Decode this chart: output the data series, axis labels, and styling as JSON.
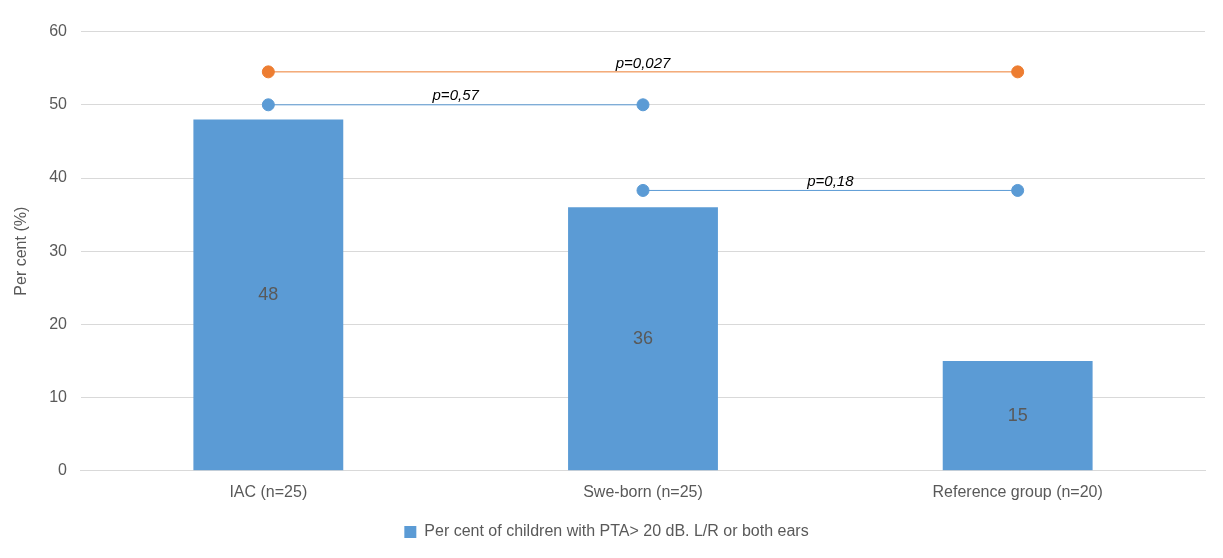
{
  "chart_data": {
    "type": "bar",
    "categories": [
      "IAC (n=25)",
      "Swe-born (n=25)",
      "Reference group (n=20)"
    ],
    "ylabel": "Per cent (%)",
    "ylim": [
      0,
      60
    ],
    "yticks": [
      0,
      10,
      20,
      30,
      40,
      50,
      60
    ],
    "grid": "y",
    "legend": "bottom",
    "series": [
      {
        "name": "Per cent of children with PTA> 20 dB. L/R or both ears",
        "color": "#5b9bd5",
        "values": [
          48,
          36,
          15
        ],
        "value_labels": [
          "48",
          "36",
          "15"
        ]
      },
      {
        "type": "line",
        "name": "p=0,027",
        "color": "#ed7d31",
        "marker": "circle",
        "values": [
          54.5,
          null,
          54.5
        ]
      },
      {
        "type": "line",
        "name": "p=0,57",
        "color": "#5b9bd5",
        "marker": "circle",
        "values": [
          50,
          50,
          null
        ]
      },
      {
        "type": "line",
        "name": "p=0,18",
        "color": "#5b9bd5",
        "marker": "circle",
        "values": [
          null,
          38.3,
          38.3
        ]
      }
    ]
  }
}
